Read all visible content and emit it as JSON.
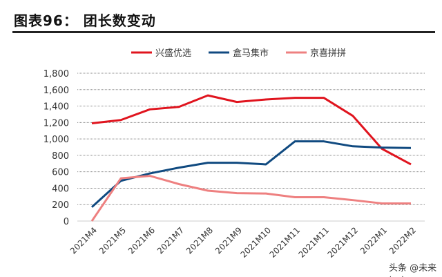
{
  "header": {
    "title": "图表96：  团长数变动"
  },
  "watermark": "头条 @未来智库",
  "chart_data": {
    "type": "line",
    "title": "图表96： 团长数变动",
    "categories": [
      "2021M4",
      "2021M5",
      "2021M6",
      "2021M7",
      "2021M8",
      "2021M9",
      "2021M10",
      "2021M11",
      "2021M11",
      "2021M12",
      "2022M1",
      "2022M2"
    ],
    "series": [
      {
        "name": "兴盛优选",
        "color": "#e0141e",
        "values": [
          1190,
          1230,
          1360,
          1390,
          1530,
          1450,
          1480,
          1500,
          1500,
          1280,
          880,
          690
        ]
      },
      {
        "name": "盒马集市",
        "color": "#104a80",
        "values": [
          170,
          490,
          580,
          650,
          710,
          710,
          690,
          970,
          970,
          910,
          895,
          890
        ]
      },
      {
        "name": "京喜拼拼",
        "color": "#ee8080",
        "values": [
          0,
          520,
          550,
          450,
          370,
          340,
          335,
          290,
          290,
          255,
          215,
          215
        ]
      }
    ],
    "yticks": [
      "0",
      "200",
      "400",
      "600",
      "800",
      "1,000",
      "1,200",
      "1,400",
      "1,600",
      "1,800"
    ],
    "ylim": [
      0,
      1800
    ],
    "grid": true,
    "legend": "top"
  }
}
